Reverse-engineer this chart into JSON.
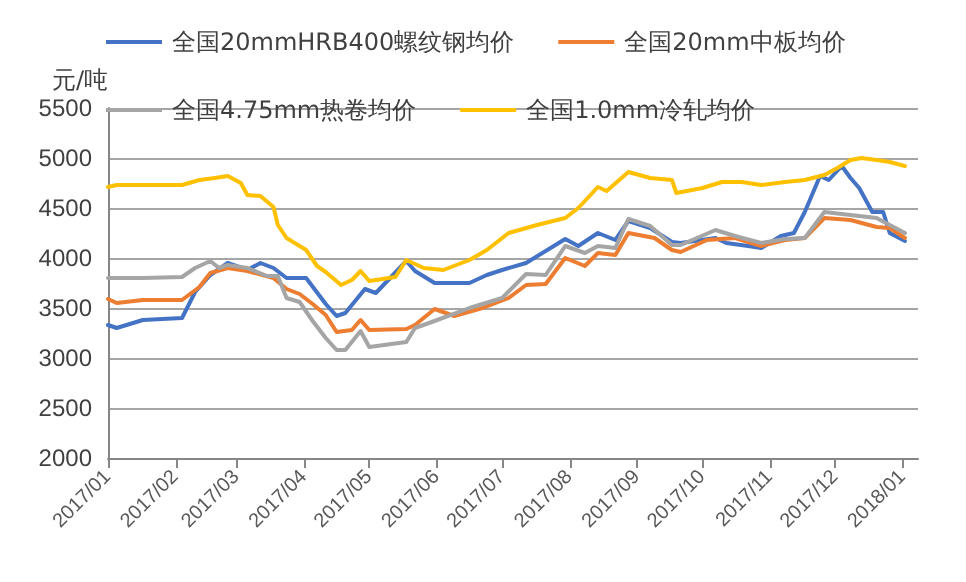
{
  "chart_data": {
    "type": "line",
    "ylabel": "元/吨",
    "legend": "top",
    "grid": "y",
    "marker": "none",
    "line_style": "solid",
    "xlim": [
      "2017-01-01",
      "2018-01-08"
    ],
    "xticks": [
      {
        "value": "2017-01-01",
        "label": "2017/01"
      },
      {
        "value": "2017-02-01",
        "label": "2017/02"
      },
      {
        "value": "2017-03-01",
        "label": "2017/03"
      },
      {
        "value": "2017-04-01",
        "label": "2017/04"
      },
      {
        "value": "2017-05-01",
        "label": "2017/05"
      },
      {
        "value": "2017-06-01",
        "label": "2017/06"
      },
      {
        "value": "2017-07-01",
        "label": "2017/07"
      },
      {
        "value": "2017-08-01",
        "label": "2017/08"
      },
      {
        "value": "2017-09-01",
        "label": "2017/09"
      },
      {
        "value": "2017-10-01",
        "label": "2017/10"
      },
      {
        "value": "2017-11-01",
        "label": "2017/11"
      },
      {
        "value": "2017-12-01",
        "label": "2017/12"
      },
      {
        "value": "2018-01-01",
        "label": "2018/01"
      }
    ],
    "ylim": [
      2000,
      5500
    ],
    "yticks": [
      2000,
      2500,
      3000,
      3500,
      4000,
      4500,
      5000,
      5500
    ],
    "series": [
      {
        "name": "全国20mmHRB400螺纹钢均价",
        "color": "#4472c4",
        "x": [
          "2017-01-01",
          "2017-01-05",
          "2017-01-17",
          "2017-02-04",
          "2017-02-10",
          "2017-02-17",
          "2017-02-25",
          "2017-03-06",
          "2017-03-12",
          "2017-03-18",
          "2017-03-24",
          "2017-04-02",
          "2017-04-11",
          "2017-04-16",
          "2017-04-20",
          "2017-04-29",
          "2017-05-04",
          "2017-05-18",
          "2017-05-22",
          "2017-05-31",
          "2017-06-16",
          "2017-06-24",
          "2017-07-01",
          "2017-07-12",
          "2017-07-30",
          "2017-08-05",
          "2017-08-14",
          "2017-08-22",
          "2017-08-28",
          "2017-09-07",
          "2017-09-17",
          "2017-09-21",
          "2017-10-07",
          "2017-10-12",
          "2017-10-22",
          "2017-10-28",
          "2017-11-06",
          "2017-11-12",
          "2017-11-17",
          "2017-11-24",
          "2017-11-28",
          "2017-12-04",
          "2017-12-08",
          "2017-12-12",
          "2017-12-18",
          "2017-12-23",
          "2017-12-26",
          "2018-01-02"
        ],
        "values": [
          3330,
          3300,
          3380,
          3400,
          3660,
          3830,
          3950,
          3880,
          3950,
          3900,
          3800,
          3800,
          3540,
          3420,
          3450,
          3690,
          3650,
          3970,
          3870,
          3750,
          3750,
          3830,
          3880,
          3950,
          4190,
          4120,
          4250,
          4180,
          4370,
          4300,
          4160,
          4150,
          4200,
          4150,
          4120,
          4100,
          4220,
          4250,
          4460,
          4820,
          4780,
          4920,
          4800,
          4700,
          4460,
          4460,
          4250,
          4170
        ]
      },
      {
        "name": "全国20mm中板均价",
        "color": "#ed7d31",
        "x": [
          "2017-01-01",
          "2017-01-05",
          "2017-01-17",
          "2017-02-04",
          "2017-02-12",
          "2017-02-17",
          "2017-02-25",
          "2017-03-06",
          "2017-03-18",
          "2017-03-24",
          "2017-03-30",
          "2017-04-05",
          "2017-04-11",
          "2017-04-16",
          "2017-04-23",
          "2017-04-27",
          "2017-05-01",
          "2017-05-18",
          "2017-05-22",
          "2017-05-31",
          "2017-06-09",
          "2017-06-22",
          "2017-07-04",
          "2017-07-12",
          "2017-07-21",
          "2017-07-30",
          "2017-08-08",
          "2017-08-14",
          "2017-08-22",
          "2017-08-28",
          "2017-09-09",
          "2017-09-17",
          "2017-09-21",
          "2017-10-03",
          "2017-10-16",
          "2017-10-28",
          "2017-11-08",
          "2017-11-17",
          "2017-11-26",
          "2017-12-08",
          "2017-12-20",
          "2017-12-26",
          "2018-01-02"
        ],
        "values": [
          3590,
          3550,
          3580,
          3580,
          3710,
          3850,
          3900,
          3870,
          3800,
          3690,
          3640,
          3540,
          3430,
          3260,
          3280,
          3380,
          3280,
          3290,
          3330,
          3490,
          3420,
          3500,
          3600,
          3730,
          3740,
          4000,
          3920,
          4050,
          4030,
          4250,
          4200,
          4080,
          4060,
          4180,
          4200,
          4120,
          4180,
          4200,
          4400,
          4380,
          4310,
          4300,
          4200
        ]
      },
      {
        "name": "全国4.75mm热卷均价",
        "color": "#a5a5a5",
        "x": [
          "2017-01-01",
          "2017-01-17",
          "2017-02-04",
          "2017-02-10",
          "2017-02-17",
          "2017-02-21",
          "2017-02-25",
          "2017-03-06",
          "2017-03-15",
          "2017-03-20",
          "2017-03-24",
          "2017-03-30",
          "2017-04-05",
          "2017-04-11",
          "2017-04-16",
          "2017-04-20",
          "2017-04-27",
          "2017-05-01",
          "2017-05-18",
          "2017-05-22",
          "2017-05-31",
          "2017-06-16",
          "2017-07-01",
          "2017-07-12",
          "2017-07-21",
          "2017-07-30",
          "2017-08-08",
          "2017-08-14",
          "2017-08-22",
          "2017-08-28",
          "2017-09-07",
          "2017-09-17",
          "2017-09-21",
          "2017-10-07",
          "2017-10-16",
          "2017-10-28",
          "2017-11-08",
          "2017-11-17",
          "2017-11-26",
          "2017-12-08",
          "2017-12-20",
          "2017-12-26",
          "2018-01-02"
        ],
        "values": [
          3800,
          3800,
          3810,
          3900,
          3970,
          3900,
          3930,
          3900,
          3820,
          3820,
          3600,
          3560,
          3370,
          3200,
          3080,
          3080,
          3270,
          3110,
          3160,
          3300,
          3370,
          3500,
          3600,
          3840,
          3830,
          4120,
          4050,
          4120,
          4100,
          4390,
          4320,
          4130,
          4130,
          4280,
          4220,
          4150,
          4190,
          4200,
          4460,
          4430,
          4400,
          4330,
          4250
        ]
      },
      {
        "name": "全国1.0mm冷轧均价",
        "color": "#ffc000",
        "x": [
          "2017-01-01",
          "2017-01-05",
          "2017-02-04",
          "2017-02-12",
          "2017-02-19",
          "2017-02-25",
          "2017-03-03",
          "2017-03-06",
          "2017-03-12",
          "2017-03-18",
          "2017-03-20",
          "2017-03-24",
          "2017-04-02",
          "2017-04-07",
          "2017-04-11",
          "2017-04-18",
          "2017-04-23",
          "2017-04-27",
          "2017-05-01",
          "2017-05-13",
          "2017-05-18",
          "2017-05-26",
          "2017-06-04",
          "2017-06-16",
          "2017-06-24",
          "2017-07-04",
          "2017-07-17",
          "2017-07-30",
          "2017-08-05",
          "2017-08-14",
          "2017-08-18",
          "2017-08-28",
          "2017-09-07",
          "2017-09-17",
          "2017-09-19",
          "2017-10-01",
          "2017-10-10",
          "2017-10-19",
          "2017-10-28",
          "2017-11-08",
          "2017-11-17",
          "2017-11-26",
          "2017-12-02",
          "2017-12-08",
          "2017-12-13",
          "2017-12-20",
          "2017-12-26",
          "2018-01-02"
        ],
        "values": [
          4710,
          4730,
          4730,
          4780,
          4800,
          4820,
          4750,
          4630,
          4620,
          4510,
          4330,
          4200,
          4080,
          3920,
          3860,
          3730,
          3780,
          3870,
          3770,
          3810,
          3980,
          3900,
          3880,
          3980,
          4080,
          4250,
          4330,
          4400,
          4500,
          4710,
          4670,
          4860,
          4800,
          4780,
          4650,
          4700,
          4760,
          4760,
          4730,
          4760,
          4780,
          4830,
          4900,
          4980,
          5000,
          4980,
          4960,
          4920
        ]
      }
    ]
  }
}
